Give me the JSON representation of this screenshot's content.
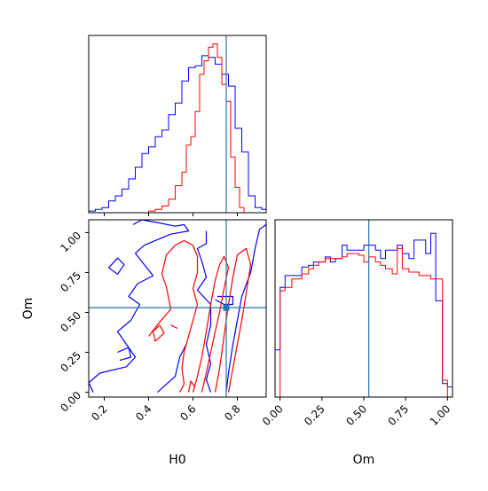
{
  "chart_data": [
    {
      "panel": "H0 marginal",
      "type": "step-histogram",
      "x_range": [
        0.13,
        0.93
      ],
      "truth_line": 0.75,
      "series": [
        {
          "color": "#0000ff",
          "bins_x": [
            0.13,
            0.16,
            0.19,
            0.22,
            0.25,
            0.28,
            0.31,
            0.34,
            0.37,
            0.4,
            0.43,
            0.46,
            0.49,
            0.52,
            0.55,
            0.58,
            0.61,
            0.64,
            0.67,
            0.7,
            0.73,
            0.76,
            0.79,
            0.82,
            0.85,
            0.88,
            0.91,
            0.93
          ],
          "heights": [
            0.01,
            0.02,
            0.03,
            0.07,
            0.1,
            0.14,
            0.2,
            0.27,
            0.35,
            0.39,
            0.45,
            0.49,
            0.58,
            0.65,
            0.78,
            0.86,
            0.87,
            0.93,
            0.92,
            0.88,
            0.82,
            0.75,
            0.5,
            0.36,
            0.1,
            0.03,
            0.02
          ]
        },
        {
          "color": "#ff0000",
          "bins_x": [
            0.4,
            0.43,
            0.46,
            0.49,
            0.52,
            0.55,
            0.57,
            0.59,
            0.61,
            0.63,
            0.65,
            0.67,
            0.69,
            0.71,
            0.73,
            0.75,
            0.77,
            0.79,
            0.81,
            0.83
          ],
          "heights": [
            0.01,
            0.02,
            0.04,
            0.08,
            0.16,
            0.24,
            0.4,
            0.45,
            0.6,
            0.82,
            0.9,
            0.98,
            1.0,
            0.92,
            0.76,
            0.66,
            0.33,
            0.15,
            0.03
          ]
        }
      ]
    },
    {
      "panel": "H0 vs Om joint",
      "type": "contour",
      "x_range": [
        0.13,
        0.93
      ],
      "y_range": [
        -0.03,
        1.08
      ],
      "xlabel": "H0",
      "ylabel": "Om",
      "x_ticks": [
        0.2,
        0.4,
        0.6,
        0.8
      ],
      "x_tick_labels": [
        "0.2",
        "0.4",
        "0.6",
        "0.8"
      ],
      "y_ticks": [
        0.0,
        0.25,
        0.5,
        0.75,
        1.0
      ],
      "y_tick_labels": [
        "0.00",
        "0.25",
        "0.50",
        "0.75",
        "1.00"
      ],
      "truth_point": [
        0.75,
        0.53
      ],
      "series": [
        {
          "color": "#0000ff",
          "contours": [
            [
              [
                0.33,
                1.05
              ],
              [
                0.37,
                1.08
              ],
              [
                0.45,
                1.06
              ],
              [
                0.52,
                1.04
              ],
              [
                0.56,
                1.05
              ],
              [
                0.58,
                1.01
              ],
              [
                0.5,
                0.99
              ],
              [
                0.43,
                0.95
              ],
              [
                0.38,
                0.92
              ],
              [
                0.34,
                0.87
              ],
              [
                0.38,
                0.8
              ],
              [
                0.42,
                0.73
              ],
              [
                0.35,
                0.68
              ],
              [
                0.31,
                0.6
              ],
              [
                0.36,
                0.55
              ],
              [
                0.32,
                0.45
              ],
              [
                0.26,
                0.38
              ],
              [
                0.3,
                0.3
              ],
              [
                0.34,
                0.22
              ],
              [
                0.3,
                0.16
              ],
              [
                0.18,
                0.12
              ],
              [
                0.13,
                0.06
              ],
              [
                0.15,
                0.0
              ]
            ],
            [
              [
                0.57,
                0.3
              ],
              [
                0.54,
                0.22
              ],
              [
                0.52,
                0.1
              ],
              [
                0.48,
                0.05
              ],
              [
                0.44,
                0.0
              ]
            ],
            [
              [
                0.66,
                1.01
              ],
              [
                0.66,
                0.93
              ],
              [
                0.62,
                0.9
              ],
              [
                0.64,
                0.82
              ],
              [
                0.66,
                0.72
              ],
              [
                0.62,
                0.64
              ],
              [
                0.68,
                0.55
              ],
              [
                0.68,
                0.42
              ],
              [
                0.66,
                0.3
              ],
              [
                0.68,
                0.18
              ],
              [
                0.66,
                0.08
              ],
              [
                0.68,
                0.0
              ]
            ],
            [
              [
                0.75,
                0.0
              ],
              [
                0.76,
                0.12
              ],
              [
                0.78,
                0.3
              ],
              [
                0.8,
                0.45
              ],
              [
                0.82,
                0.6
              ],
              [
                0.86,
                0.75
              ],
              [
                0.88,
                0.9
              ],
              [
                0.9,
                1.02
              ],
              [
                0.93,
                1.05
              ]
            ],
            [
              [
                0.71,
                0.6
              ],
              [
                0.78,
                0.6
              ],
              [
                0.78,
                0.55
              ],
              [
                0.74,
                0.55
              ],
              [
                0.7,
                0.58
              ]
            ],
            [
              [
                0.22,
                0.78
              ],
              [
                0.26,
                0.84
              ],
              [
                0.29,
                0.8
              ],
              [
                0.26,
                0.74
              ],
              [
                0.22,
                0.78
              ]
            ],
            [
              [
                0.26,
                0.25
              ],
              [
                0.31,
                0.28
              ],
              [
                0.32,
                0.22
              ],
              [
                0.27,
                0.2
              ]
            ]
          ]
        },
        {
          "color": "#ff0000",
          "contours": [
            [
              [
                0.4,
                0.35
              ],
              [
                0.45,
                0.44
              ],
              [
                0.5,
                0.52
              ],
              [
                0.48,
                0.66
              ],
              [
                0.46,
                0.74
              ],
              [
                0.48,
                0.86
              ],
              [
                0.52,
                0.92
              ],
              [
                0.56,
                0.95
              ],
              [
                0.6,
                0.92
              ],
              [
                0.62,
                0.85
              ],
              [
                0.62,
                0.75
              ],
              [
                0.6,
                0.65
              ],
              [
                0.62,
                0.55
              ],
              [
                0.6,
                0.45
              ],
              [
                0.58,
                0.35
              ],
              [
                0.56,
                0.25
              ],
              [
                0.55,
                0.15
              ],
              [
                0.56,
                0.05
              ],
              [
                0.54,
                0.0
              ]
            ],
            [
              [
                0.6,
                0.0
              ],
              [
                0.62,
                0.1
              ],
              [
                0.64,
                0.22
              ],
              [
                0.66,
                0.38
              ],
              [
                0.68,
                0.55
              ],
              [
                0.7,
                0.7
              ],
              [
                0.72,
                0.8
              ],
              [
                0.74,
                0.85
              ],
              [
                0.76,
                0.78
              ],
              [
                0.74,
                0.65
              ],
              [
                0.72,
                0.5
              ],
              [
                0.7,
                0.38
              ],
              [
                0.68,
                0.25
              ],
              [
                0.66,
                0.12
              ],
              [
                0.64,
                0.0
              ]
            ],
            [
              [
                0.7,
                0.0
              ],
              [
                0.72,
                0.15
              ],
              [
                0.74,
                0.35
              ],
              [
                0.76,
                0.55
              ],
              [
                0.78,
                0.72
              ],
              [
                0.8,
                0.86
              ],
              [
                0.84,
                0.9
              ],
              [
                0.86,
                0.8
              ],
              [
                0.84,
                0.62
              ],
              [
                0.82,
                0.45
              ],
              [
                0.8,
                0.3
              ],
              [
                0.78,
                0.15
              ],
              [
                0.76,
                0.0
              ]
            ],
            [
              [
                0.42,
                0.38
              ],
              [
                0.45,
                0.42
              ],
              [
                0.47,
                0.37
              ],
              [
                0.43,
                0.32
              ],
              [
                0.42,
                0.38
              ]
            ],
            [
              [
                0.5,
                0.42
              ],
              [
                0.53,
                0.4
              ]
            ],
            [
              [
                0.58,
                0.0
              ],
              [
                0.59,
                0.07
              ],
              [
                0.61,
                0.03
              ]
            ]
          ]
        }
      ]
    },
    {
      "panel": "Om marginal",
      "type": "step-histogram",
      "x_range": [
        -0.03,
        1.03
      ],
      "xlabel": "Om",
      "x_ticks": [
        0.0,
        0.25,
        0.5,
        0.75,
        1.0
      ],
      "x_tick_labels": [
        "0.00",
        "0.25",
        "0.50",
        "0.75",
        "1.00"
      ],
      "truth_line": 0.53,
      "series": [
        {
          "color": "#0000ff",
          "bins_x": [
            -0.03,
            0.0,
            0.03,
            0.07,
            0.1,
            0.13,
            0.17,
            0.2,
            0.23,
            0.27,
            0.3,
            0.33,
            0.37,
            0.4,
            0.43,
            0.47,
            0.5,
            0.53,
            0.57,
            0.6,
            0.63,
            0.67,
            0.7,
            0.73,
            0.77,
            0.8,
            0.83,
            0.87,
            0.9,
            0.93,
            0.97,
            1.0,
            1.03
          ],
          "heights": [
            0.28,
            0.65,
            0.72,
            0.72,
            0.72,
            0.77,
            0.78,
            0.8,
            0.8,
            0.83,
            0.8,
            0.82,
            0.9,
            0.87,
            0.87,
            0.87,
            0.9,
            0.9,
            0.87,
            0.82,
            0.87,
            0.87,
            0.9,
            0.85,
            0.82,
            0.93,
            0.93,
            0.85,
            0.97,
            0.57,
            0.08,
            0.06
          ]
        },
        {
          "color": "#ff0000",
          "bins_x": [
            0.0,
            0.03,
            0.07,
            0.1,
            0.13,
            0.17,
            0.2,
            0.23,
            0.27,
            0.3,
            0.33,
            0.37,
            0.4,
            0.43,
            0.47,
            0.5,
            0.53,
            0.57,
            0.6,
            0.63,
            0.67,
            0.7,
            0.73,
            0.77,
            0.8,
            0.83,
            0.87,
            0.9,
            0.93,
            0.97,
            1.0
          ],
          "heights": [
            0.63,
            0.65,
            0.7,
            0.7,
            0.73,
            0.76,
            0.78,
            0.8,
            0.82,
            0.82,
            0.82,
            0.83,
            0.85,
            0.85,
            0.84,
            0.8,
            0.83,
            0.8,
            0.78,
            0.76,
            0.73,
            0.88,
            0.76,
            0.74,
            0.74,
            0.72,
            0.72,
            0.7,
            0.7,
            0.1
          ]
        }
      ]
    }
  ],
  "colors": {
    "truth": "#1f77b4",
    "blue": "#0000ff",
    "red": "#ff0000"
  }
}
